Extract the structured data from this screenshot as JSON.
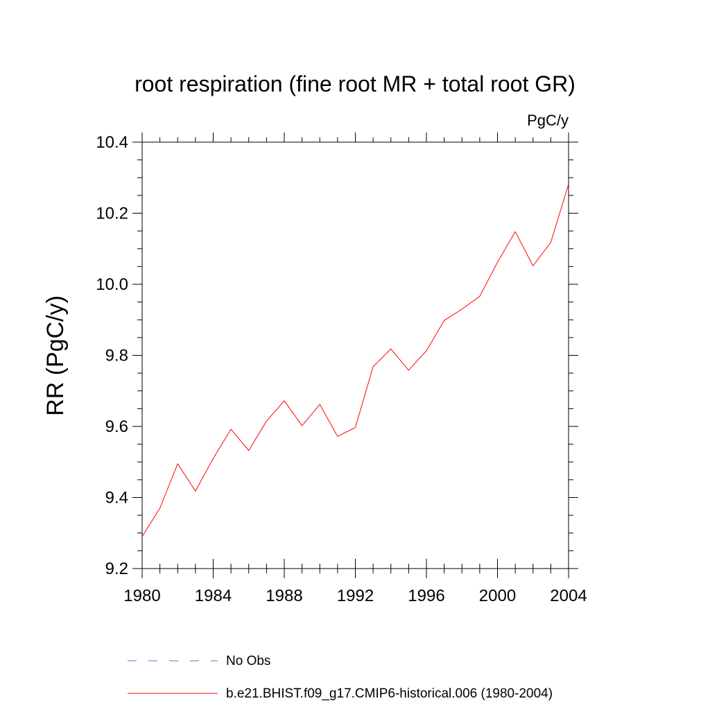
{
  "chart_data": {
    "type": "line",
    "title": "root respiration (fine root MR + total root GR)",
    "units_label": "PgC/y",
    "xlabel": "",
    "ylabel": "RR  (PgC/y)",
    "xlim": [
      1980,
      2004
    ],
    "ylim": [
      9.2,
      10.4
    ],
    "x_ticks": [
      1980,
      1984,
      1988,
      1992,
      1996,
      2000,
      2004
    ],
    "x_tick_labels": [
      "1980",
      "1984",
      "1988",
      "1992",
      "1996",
      "2000",
      "2004"
    ],
    "y_ticks": [
      9.2,
      9.4,
      9.6,
      9.8,
      10.0,
      10.2,
      10.4
    ],
    "y_tick_labels": [
      "9.2",
      "9.4",
      "9.6",
      "9.8",
      "10.0",
      "10.2",
      "10.4"
    ],
    "grid": false,
    "legend_position": "bottom",
    "series": [
      {
        "name": "No Obs",
        "color": "#6b6bd6",
        "style": "dashed",
        "x": [],
        "y": []
      },
      {
        "name": "b.e21.BHIST.f09_g17.CMIP6-historical.006 (1980-2004)",
        "color": "#ff0000",
        "style": "solid",
        "x": [
          1980,
          1981,
          1982,
          1983,
          1984,
          1985,
          1986,
          1987,
          1988,
          1989,
          1990,
          1991,
          1992,
          1993,
          1994,
          1995,
          1996,
          1997,
          1998,
          1999,
          2000,
          2001,
          2002,
          2003,
          2004
        ],
        "y": [
          9.29,
          9.37,
          9.495,
          9.418,
          9.51,
          9.592,
          9.532,
          9.615,
          9.672,
          9.602,
          9.662,
          9.572,
          9.597,
          9.768,
          9.818,
          9.758,
          9.813,
          9.898,
          9.93,
          9.966,
          10.062,
          10.148,
          10.052,
          10.118,
          10.282
        ]
      }
    ]
  }
}
